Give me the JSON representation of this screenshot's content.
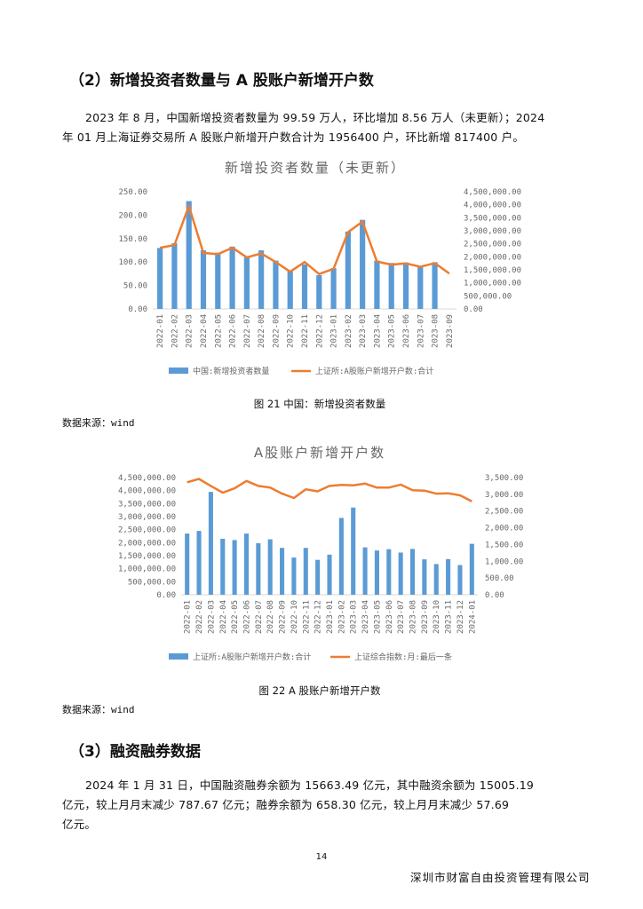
{
  "section2": {
    "heading": "（2）新增投资者数量与 A 股账户新增开户数",
    "para_line1": "2023 年 8 月，中国新增投资者数量为 99.59 万人，环比增加 8.56 万人（未更新）；2024",
    "para_line2": "年 01 月上海证券交易所 A 股账户新增开户数合计为 1956400 户，环比新增 817400 户。"
  },
  "figure21": {
    "caption": "图 21 中国：新增投资者数量",
    "source": "数据来源：wind"
  },
  "figure22": {
    "caption": "图 22 A 股账户新增开户数",
    "source": "数据来源：wind"
  },
  "section3": {
    "heading": "（3）融资融券数据",
    "para_line1": "2024 年 1 月 31 日，中国融资融券余额为 15663.49 亿元，其中融资余额为 15005.19",
    "para_line2": "亿元，较上月月末减少 787.67 亿元；融券余额为 658.30 亿元，较上月月末减少 57.69",
    "para_line3": "亿元。"
  },
  "page_number": "14",
  "footer_company": "深圳市财富自由投资管理有限公司",
  "colors": {
    "bar": "#5b9bd5",
    "line": "#ed7d31",
    "axis_text": "#666666",
    "grid": "#d9d9d9"
  },
  "chart_data": [
    {
      "type": "bar",
      "title": "新增投资者数量（未更新）",
      "categories": [
        "2022-01",
        "2022-02",
        "2022-03",
        "2022-04",
        "2022-05",
        "2022-06",
        "2022-07",
        "2022-08",
        "2022-09",
        "2022-10",
        "2022-11",
        "2022-12",
        "2023-01",
        "2023-02",
        "2023-03",
        "2023-04",
        "2023-05",
        "2023-06",
        "2023-07",
        "2023-08",
        "2023-09"
      ],
      "y_ticks": [
        "250.00",
        "200.00",
        "150.00",
        "100.00",
        "50.00",
        "0.00"
      ],
      "y2_ticks": [
        "4,500,000.00",
        "4,000,000.00",
        "3,500,000.00",
        "3,000,000.00",
        "2,500,000.00",
        "2,000,000.00",
        "1,500,000.00",
        "1,000,000.00",
        "500,000.00",
        "0.00"
      ],
      "ylim": [
        0,
        250
      ],
      "y2lim": [
        0,
        4500000
      ],
      "series": [
        {
          "name": "中国:新增投资者数量",
          "kind": "bar",
          "axis": "left",
          "values": [
            130,
            140,
            230,
            125,
            120,
            133,
            110,
            125,
            103,
            82,
            95,
            72,
            87,
            165,
            190,
            103,
            98,
            99,
            91,
            99.59,
            null
          ]
        },
        {
          "name": "上证所:A股账户新增开户数:合计",
          "kind": "line",
          "axis": "right",
          "values": [
            2350000,
            2450000,
            3950000,
            2150000,
            2100000,
            2350000,
            1980000,
            2130000,
            1800000,
            1430000,
            1800000,
            1340000,
            1540000,
            2950000,
            3350000,
            1820000,
            1700000,
            1750000,
            1620000,
            1760000,
            1360000
          ]
        }
      ]
    },
    {
      "type": "bar",
      "title": "A股账户新增开户数",
      "categories": [
        "2022-01",
        "2022-02",
        "2022-03",
        "2022-04",
        "2022-05",
        "2022-06",
        "2022-07",
        "2022-08",
        "2022-09",
        "2022-10",
        "2022-11",
        "2022-12",
        "2023-01",
        "2023-02",
        "2023-03",
        "2023-04",
        "2023-05",
        "2023-06",
        "2023-07",
        "2023-08",
        "2023-09",
        "2023-10",
        "2023-11",
        "2023-12",
        "2024-01"
      ],
      "y_ticks": [
        "4,500,000.00",
        "4,000,000.00",
        "3,500,000.00",
        "3,000,000.00",
        "2,500,000.00",
        "2,000,000.00",
        "1,500,000.00",
        "1,000,000.00",
        "500,000.00",
        "0.00"
      ],
      "y2_ticks": [
        "3,500.00",
        "3,000.00",
        "2,500.00",
        "2,000.00",
        "1,500.00",
        "1,000.00",
        "500.00",
        "0.00"
      ],
      "ylim": [
        0,
        4500000
      ],
      "y2lim": [
        0,
        3500
      ],
      "series": [
        {
          "name": "上证所:A股账户新增开户数:合计",
          "kind": "bar",
          "axis": "left",
          "values": [
            2350000,
            2450000,
            3950000,
            2150000,
            2100000,
            2350000,
            1980000,
            2130000,
            1800000,
            1430000,
            1800000,
            1340000,
            1540000,
            2950000,
            3350000,
            1820000,
            1700000,
            1750000,
            1620000,
            1760000,
            1360000,
            1180000,
            1370000,
            1140000,
            1956400
          ]
        },
        {
          "name": "上证综合指数:月:最后一条",
          "kind": "line",
          "axis": "right",
          "values": [
            3360,
            3460,
            3250,
            3050,
            3180,
            3400,
            3250,
            3200,
            3020,
            2890,
            3150,
            3090,
            3250,
            3280,
            3270,
            3320,
            3200,
            3200,
            3290,
            3120,
            3110,
            3020,
            3030,
            2970,
            2790
          ]
        }
      ]
    }
  ]
}
